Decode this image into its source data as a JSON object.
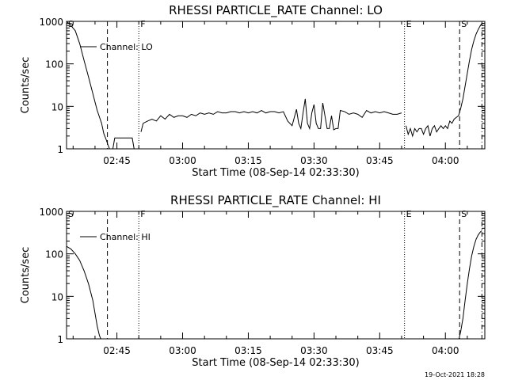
{
  "chart_data": [
    {
      "type": "line",
      "title": "RHESSI PARTICLE_RATE Channel: LO",
      "xlabel": "Start Time (08-Sep-14 02:33:30)",
      "ylabel": "Counts/sec",
      "yscale": "log",
      "ylim": [
        1,
        1000
      ],
      "xlim": [
        "02:33:30",
        "04:09:00"
      ],
      "x_tick_labels": [
        "02:45",
        "03:00",
        "03:15",
        "03:30",
        "03:45",
        "04:00"
      ],
      "y_tick_labels": [
        "1",
        "10",
        "100",
        "1000"
      ],
      "legend": {
        "label": "Channel: LO",
        "position": "top-left"
      },
      "grid": false,
      "markers": [
        {
          "label": "S",
          "time": "02:33:30",
          "style": "solid"
        },
        {
          "label": "",
          "time": "02:42:50",
          "style": "dashed"
        },
        {
          "label": "F",
          "time": "02:50:00",
          "style": "dotted"
        },
        {
          "label": "E",
          "time": "03:50:40",
          "style": "dotted"
        },
        {
          "label": "S",
          "time": "04:03:15",
          "style": "dashed"
        },
        {
          "label": "",
          "time": "04:08:20",
          "style": "dashdot"
        }
      ],
      "segments": [
        {
          "x": [
            "02:33:30",
            "02:34:30",
            "02:35:30",
            "02:36:30",
            "02:37:30",
            "02:38:30",
            "02:39:30",
            "02:40:30",
            "02:41:30",
            "02:42:00",
            "02:42:30",
            "02:43:00",
            "02:43:30",
            "02:44:00",
            "02:44:30",
            "02:45:00",
            "02:45:30",
            "02:46:00",
            "02:46:30",
            "02:47:00",
            "02:47:30",
            "02:48:00",
            "02:48:30",
            "02:49:00",
            "02:49:30"
          ],
          "values": [
            1000,
            800,
            600,
            300,
            120,
            50,
            20,
            8,
            4,
            2.3,
            1.7,
            1.2,
            0.9,
            0.9,
            1.8,
            1.8,
            1.8,
            1.8,
            1.8,
            1.8,
            1.8,
            1.8,
            1.8,
            0.9,
            0.9
          ]
        },
        {
          "x": [
            "02:50:30",
            "02:51:00",
            "02:52:00",
            "02:53:00",
            "02:54:00",
            "02:55:00",
            "02:56:00",
            "02:57:00",
            "02:58:00",
            "02:59:00",
            "03:00:00",
            "03:01:00",
            "03:02:00",
            "03:03:00",
            "03:04:00",
            "03:05:00",
            "03:06:00",
            "03:07:00",
            "03:08:00",
            "03:09:00",
            "03:10:00",
            "03:11:00",
            "03:12:00",
            "03:13:00",
            "03:14:00",
            "03:15:00",
            "03:16:00",
            "03:17:00",
            "03:18:00",
            "03:19:00",
            "03:20:00",
            "03:21:00",
            "03:22:00",
            "03:23:00",
            "03:24:00",
            "03:25:00",
            "03:26:00",
            "03:26:30",
            "03:27:00",
            "03:27:30",
            "03:28:00",
            "03:28:30",
            "03:29:00",
            "03:29:30",
            "03:30:00",
            "03:30:30",
            "03:31:00",
            "03:31:30",
            "03:32:00",
            "03:33:00",
            "03:33:30",
            "03:34:00",
            "03:34:30",
            "03:35:00",
            "03:35:30",
            "03:36:00",
            "03:37:00",
            "03:38:00",
            "03:39:00",
            "03:40:00",
            "03:41:00",
            "03:42:00",
            "03:43:00",
            "03:44:00",
            "03:45:00",
            "03:46:00",
            "03:47:00",
            "03:48:00",
            "03:49:00",
            "03:50:00"
          ],
          "values": [
            2.5,
            4.0,
            4.5,
            5.0,
            4.5,
            6.0,
            5.0,
            6.5,
            5.5,
            6.0,
            6.0,
            5.5,
            6.5,
            6.0,
            7.0,
            6.5,
            7.0,
            6.5,
            7.5,
            7.0,
            7.0,
            7.5,
            7.5,
            7.0,
            7.5,
            7.0,
            7.5,
            7.0,
            8.0,
            7.0,
            7.5,
            7.5,
            7.0,
            7.5,
            4.5,
            3.5,
            8.5,
            4.0,
            3.0,
            7.0,
            15.0,
            4.0,
            3.0,
            7.0,
            11.0,
            4.0,
            3.0,
            3.0,
            12.0,
            3.0,
            3.0,
            6.0,
            2.8,
            3.0,
            3.0,
            8.0,
            7.5,
            6.5,
            7.0,
            6.5,
            5.5,
            8.0,
            7.0,
            7.5,
            7.0,
            7.5,
            7.0,
            6.5,
            6.5,
            7.0
          ]
        },
        {
          "x": [
            "03:51:00",
            "03:51:30",
            "03:52:00",
            "03:52:30",
            "03:53:00",
            "03:53:30",
            "03:54:00",
            "03:54:30",
            "03:55:00",
            "03:55:30",
            "03:56:00",
            "03:56:30",
            "03:57:00",
            "03:57:30",
            "03:58:00",
            "03:58:30",
            "03:59:00",
            "03:59:30",
            "04:00:00",
            "04:00:30",
            "04:01:00",
            "04:01:30",
            "04:02:00",
            "04:02:30",
            "04:03:00",
            "04:03:30",
            "04:04:00",
            "04:04:30",
            "04:05:00",
            "04:05:30",
            "04:06:00",
            "04:06:30",
            "04:07:00",
            "04:07:30",
            "04:08:00",
            "04:08:20"
          ],
          "values": [
            3.5,
            2.2,
            3.0,
            2.0,
            3.0,
            2.5,
            3.0,
            3.0,
            2.2,
            3.0,
            3.5,
            2.0,
            3.0,
            3.5,
            2.5,
            3.0,
            3.5,
            3.0,
            3.5,
            3.0,
            4.5,
            4.0,
            5.0,
            5.5,
            6.0,
            9.0,
            15.0,
            30.0,
            60.0,
            120.0,
            220.0,
            350.0,
            500.0,
            650.0,
            800.0,
            900.0
          ]
        }
      ]
    },
    {
      "type": "line",
      "title": "RHESSI PARTICLE_RATE Channel: HI",
      "xlabel": "Start Time (08-Sep-14 02:33:30)",
      "ylabel": "Counts/sec",
      "yscale": "log",
      "ylim": [
        1,
        1000
      ],
      "xlim": [
        "02:33:30",
        "04:09:00"
      ],
      "x_tick_labels": [
        "02:45",
        "03:00",
        "03:15",
        "03:30",
        "03:45",
        "04:00"
      ],
      "y_tick_labels": [
        "1",
        "10",
        "100",
        "1000"
      ],
      "legend": {
        "label": "Channel: HI",
        "position": "top-left"
      },
      "grid": false,
      "markers": [
        {
          "label": "S",
          "time": "02:33:30",
          "style": "solid"
        },
        {
          "label": "",
          "time": "02:42:50",
          "style": "dashed"
        },
        {
          "label": "F",
          "time": "02:50:00",
          "style": "dotted"
        },
        {
          "label": "E",
          "time": "03:50:40",
          "style": "dotted"
        },
        {
          "label": "S",
          "time": "04:03:15",
          "style": "dashed"
        },
        {
          "label": "",
          "time": "04:08:20",
          "style": "dashdot"
        }
      ],
      "segments": [
        {
          "x": [
            "02:33:30",
            "02:34:30",
            "02:35:30",
            "02:36:30",
            "02:37:30",
            "02:38:30",
            "02:39:30",
            "02:40:00",
            "02:40:30",
            "02:41:00",
            "02:41:30"
          ],
          "values": [
            150,
            130,
            100,
            70,
            40,
            20,
            8,
            4,
            2,
            1.2,
            0.9
          ]
        },
        {
          "x": [
            "04:03:00",
            "04:03:30",
            "04:04:00",
            "04:04:30",
            "04:05:00",
            "04:05:30",
            "04:06:00",
            "04:06:30",
            "04:07:00",
            "04:07:30",
            "04:08:00",
            "04:08:20"
          ],
          "values": [
            0.9,
            1.5,
            3.0,
            8.0,
            20.0,
            45.0,
            90.0,
            150.0,
            220.0,
            280.0,
            330.0,
            350.0
          ]
        }
      ]
    }
  ],
  "footer": {
    "timestamp": "19-Oct-2021 18:28"
  }
}
